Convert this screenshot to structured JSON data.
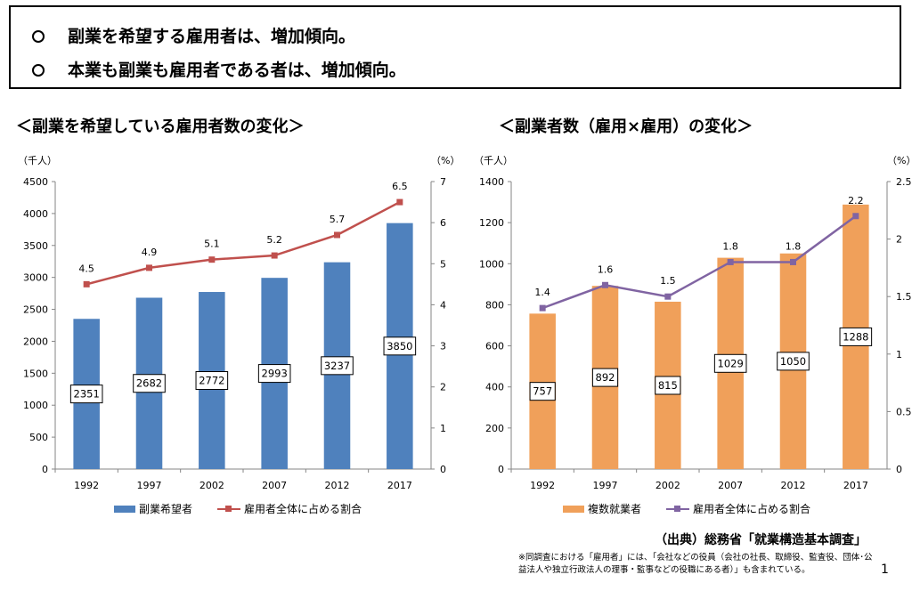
{
  "summary": {
    "lines": [
      "副業を希望する雇用者は、増加傾向。",
      "本業も副業も雇用者である者は、増加傾向。"
    ]
  },
  "chart_data": [
    {
      "type": "bar",
      "title": "＜副業を希望している雇用者数の変化＞",
      "y_unit_left": "（千人）",
      "y_unit_right": "（%）",
      "categories": [
        "1992",
        "1997",
        "2002",
        "2007",
        "2012",
        "2017"
      ],
      "series": [
        {
          "name": "副業希望者",
          "type": "bar",
          "axis": "left",
          "color": "#4f81bd",
          "values": [
            2351,
            2682,
            2772,
            2993,
            3237,
            3850
          ]
        },
        {
          "name": "雇用者全体に占める割合",
          "type": "line",
          "axis": "right",
          "color": "#c0504d",
          "values": [
            4.5,
            4.9,
            5.1,
            5.2,
            5.7,
            6.5
          ]
        }
      ],
      "ylim_left": [
        0,
        4500
      ],
      "yticks_left": [
        "0",
        "500",
        "1000",
        "1500",
        "2000",
        "2500",
        "3000",
        "3500",
        "4000",
        "4500"
      ],
      "ylim_right": [
        0,
        7
      ],
      "yticks_right": [
        "0",
        "1",
        "2",
        "3",
        "4",
        "5",
        "6",
        "7"
      ],
      "grid": false,
      "legend": "bottom"
    },
    {
      "type": "bar",
      "title": "＜副業者数（雇用×雇用）の変化＞",
      "y_unit_left": "（千人）",
      "y_unit_right": "（%）",
      "categories": [
        "1992",
        "1997",
        "2002",
        "2007",
        "2012",
        "2017"
      ],
      "series": [
        {
          "name": "複数就業者",
          "type": "bar",
          "axis": "left",
          "color": "#f0a05a",
          "values": [
            757,
            892,
            815,
            1029,
            1050,
            1288
          ]
        },
        {
          "name": "雇用者全体に占める割合",
          "type": "line",
          "axis": "right",
          "color": "#8064a2",
          "values": [
            1.4,
            1.6,
            1.5,
            1.8,
            1.8,
            2.2
          ]
        }
      ],
      "ylim_left": [
        0,
        1400
      ],
      "yticks_left": [
        "0",
        "200",
        "400",
        "600",
        "800",
        "1000",
        "1200",
        "1400"
      ],
      "ylim_right": [
        0,
        2.5
      ],
      "yticks_right": [
        "0",
        "0.5",
        "1",
        "1.5",
        "2",
        "2.5"
      ],
      "grid": false,
      "legend": "bottom"
    }
  ],
  "source": "（出典）総務省「就業構造基本調査」",
  "note": "※同調査における「雇用者」には、「会社などの役員（会社の社長、取締役、監査役、団体･公益法人や独立行政法人の理事・監事などの役職にある者）」も含まれている。",
  "page_number": "1"
}
